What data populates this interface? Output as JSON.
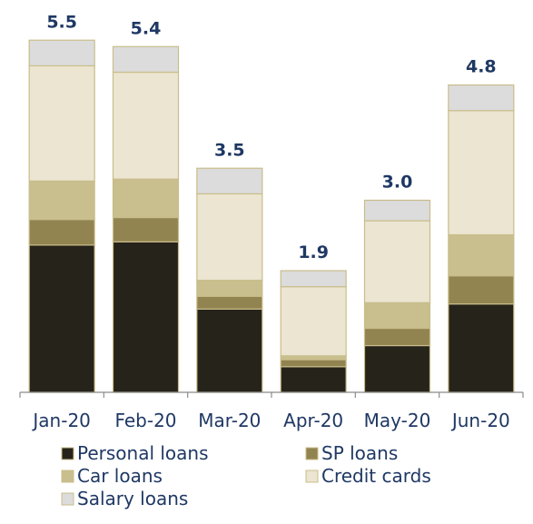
{
  "chart_data": {
    "type": "bar",
    "stacked": true,
    "title": "",
    "xlabel": "",
    "ylabel": "",
    "categories": [
      "Jan-20",
      "Feb-20",
      "Mar-20",
      "Apr-20",
      "May-20",
      "Jun-20"
    ],
    "totals": [
      "5.5",
      "5.4",
      "3.5",
      "1.9",
      "3.0",
      "4.8"
    ],
    "series": [
      {
        "name": "Personal loans",
        "color": "#26231a",
        "values": [
          2.3,
          2.35,
          1.3,
          0.4,
          0.73,
          1.38
        ]
      },
      {
        "name": "SP loans",
        "color": "#928451",
        "values": [
          0.4,
          0.38,
          0.2,
          0.11,
          0.27,
          0.44
        ]
      },
      {
        "name": "Car loans",
        "color": "#c9be8e",
        "values": [
          0.6,
          0.6,
          0.25,
          0.06,
          0.4,
          0.64
        ]
      },
      {
        "name": "Credit cards",
        "color": "#ebe5d1",
        "values": [
          1.8,
          1.67,
          1.35,
          1.08,
          1.28,
          1.94
        ]
      },
      {
        "name": "Salary loans",
        "color": "#dcdcdc",
        "values": [
          0.4,
          0.4,
          0.4,
          0.25,
          0.32,
          0.4
        ]
      }
    ],
    "ylim": [
      0,
      5.6
    ],
    "legend_position": "bottom",
    "grid": false
  }
}
